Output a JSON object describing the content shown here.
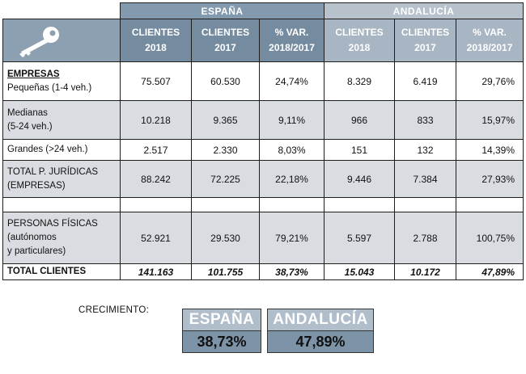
{
  "header": {
    "group_spain": "ESPAÑA",
    "group_andalucia": "ANDALUCÍA",
    "columns": [
      {
        "line1": "CLIENTES",
        "line2": "2018"
      },
      {
        "line1": "CLIENTES",
        "line2": "2017"
      },
      {
        "line1": "% VAR.",
        "line2": "2018/2017"
      },
      {
        "line1": "CLIENTES",
        "line2": "2018"
      },
      {
        "line1": "CLIENTES",
        "line2": "2017"
      },
      {
        "line1": "% VAR.",
        "line2": "2018/2017"
      }
    ],
    "icon": "key-icon"
  },
  "rows": [
    {
      "label_title": "EMPRESAS",
      "label_lines": [
        "Pequeñas (1-4 veh.)"
      ],
      "values": [
        "75.507",
        "60.530",
        "24,74%",
        "8.329",
        "6.419",
        "29,76%"
      ]
    },
    {
      "label_lines": [
        "Medianas",
        "(5-24 veh.)"
      ],
      "values": [
        "10.218",
        "9.365",
        "9,11%",
        "966",
        "833",
        "15,97%"
      ]
    },
    {
      "label_lines": [
        "Grandes (>24 veh.)"
      ],
      "values": [
        "2.517",
        "2.330",
        "8,03%",
        "151",
        "132",
        "14,39%"
      ]
    },
    {
      "label_lines": [
        "TOTAL P. JURÍDICAS",
        "(EMPRESAS)"
      ],
      "values": [
        "88.242",
        "72.225",
        "22,18%",
        "9.446",
        "7.384",
        "27,93%"
      ]
    },
    {
      "label_lines": [
        "PERSONAS FÍSICAS",
        "(autónomos",
        "y particulares)"
      ],
      "values": [
        "52.921",
        "29.530",
        "79,21%",
        "5.597",
        "2.788",
        "100,75%"
      ]
    },
    {
      "label_lines": [
        "TOTAL CLIENTES"
      ],
      "values": [
        "141.163",
        "101.755",
        "38,73%",
        "15.043",
        "10.172",
        "47,89%"
      ]
    }
  ],
  "growth": {
    "label": "CRECIMIENTO:",
    "spain_title": "ESPAÑA",
    "spain_value": "38,73%",
    "andalucia_title": "ANDALUCÍA",
    "andalucia_value": "47,89%"
  },
  "colors": {
    "spain_header": "#758ba0",
    "andalucia_header": "#a8b5c2",
    "row_shade": "#d9dde2"
  }
}
